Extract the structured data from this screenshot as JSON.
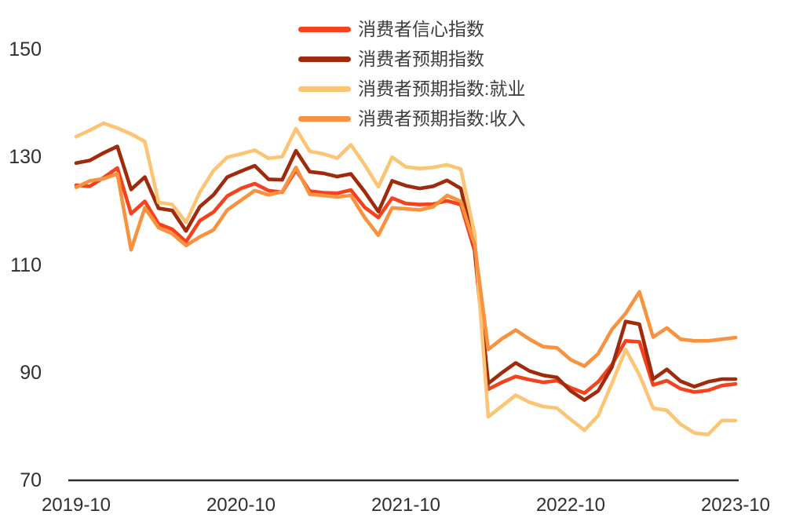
{
  "chart_data": {
    "type": "line",
    "title": "",
    "xlabel": "",
    "ylabel": "",
    "grid": false,
    "legend_position": "top-center",
    "ylim": [
      70,
      150
    ],
    "y_ticks": [
      150,
      130,
      110,
      90,
      70
    ],
    "x_ticks": [
      {
        "label": "2019-10",
        "month_index": 0
      },
      {
        "label": "2020-10",
        "month_index": 12
      },
      {
        "label": "2021-10",
        "month_index": 24
      },
      {
        "label": "2022-10",
        "month_index": 36
      },
      {
        "label": "2023-10",
        "month_index": 48
      }
    ],
    "x": [
      "2019-10",
      "2019-11",
      "2019-12",
      "2020-01",
      "2020-02",
      "2020-03",
      "2020-04",
      "2020-05",
      "2020-06",
      "2020-07",
      "2020-08",
      "2020-09",
      "2020-10",
      "2020-11",
      "2020-12",
      "2021-01",
      "2021-02",
      "2021-03",
      "2021-04",
      "2021-05",
      "2021-06",
      "2021-07",
      "2021-08",
      "2021-09",
      "2021-10",
      "2021-11",
      "2021-12",
      "2022-01",
      "2022-02",
      "2022-03",
      "2022-04",
      "2022-05",
      "2022-06",
      "2022-07",
      "2022-08",
      "2022-09",
      "2022-10",
      "2022-11",
      "2022-12",
      "2023-01",
      "2023-02",
      "2023-03",
      "2023-04",
      "2023-05",
      "2023-06",
      "2023-07",
      "2023-08",
      "2023-09",
      "2023-10"
    ],
    "series": [
      {
        "key": "cci",
        "name": "消费者信心指数",
        "color": "#F5421C",
        "values": [
          124.8,
          124.6,
          126.2,
          128.0,
          119.5,
          121.8,
          117.6,
          116.6,
          114.3,
          118.2,
          119.8,
          122.8,
          124.2,
          125.1,
          123.8,
          123.5,
          127.6,
          123.7,
          123.4,
          123.3,
          123.9,
          120.7,
          118.8,
          122.4,
          121.4,
          121.2,
          121.3,
          121.9,
          121.2,
          112.7,
          86.9,
          88.2,
          89.3,
          88.7,
          88.2,
          88.5,
          87.2,
          86.2,
          88.3,
          91.5,
          95.9,
          95.7,
          87.7,
          88.5,
          87.0,
          86.4,
          86.7,
          87.6,
          87.9
        ]
      },
      {
        "key": "expectation",
        "name": "消费者预期指数",
        "color": "#A02A0C",
        "values": [
          128.9,
          129.4,
          130.8,
          132.0,
          124.0,
          126.3,
          120.5,
          120.1,
          116.3,
          120.8,
          123.0,
          126.3,
          127.4,
          128.4,
          125.9,
          125.8,
          131.2,
          127.3,
          127.0,
          126.4,
          126.9,
          123.6,
          119.9,
          125.6,
          124.7,
          124.2,
          124.6,
          125.7,
          124.2,
          113.2,
          88.0,
          90.0,
          91.8,
          90.3,
          89.5,
          89.1,
          86.6,
          84.9,
          86.6,
          91.0,
          99.5,
          99.0,
          88.8,
          90.6,
          88.4,
          87.4,
          88.3,
          88.8,
          88.8
        ]
      },
      {
        "key": "expectation-employment",
        "name": "消费者预期指数:就业",
        "color": "#FCC573",
        "values": [
          133.8,
          135.0,
          136.3,
          135.4,
          134.3,
          132.9,
          121.6,
          121.2,
          117.9,
          123.5,
          127.5,
          130.0,
          130.6,
          131.3,
          129.8,
          130.1,
          135.3,
          131.1,
          130.6,
          129.8,
          132.3,
          128.6,
          124.5,
          130.0,
          128.2,
          127.9,
          128.1,
          128.6,
          127.8,
          115.8,
          81.8,
          83.8,
          85.8,
          84.5,
          83.7,
          83.4,
          81.3,
          79.3,
          82.0,
          88.0,
          94.3,
          89.6,
          83.4,
          83.0,
          80.4,
          78.8,
          78.5,
          81.1,
          81.1
        ]
      },
      {
        "key": "expectation-income",
        "name": "消费者预期指数:收入",
        "color": "#F8923F",
        "values": [
          124.4,
          125.6,
          126.0,
          126.9,
          112.8,
          120.6,
          116.9,
          115.8,
          113.6,
          115.2,
          116.5,
          120.2,
          122.0,
          123.8,
          123.0,
          123.6,
          128.1,
          123.1,
          122.9,
          122.6,
          122.9,
          118.8,
          115.5,
          120.6,
          120.4,
          120.2,
          120.8,
          122.9,
          121.8,
          113.8,
          94.3,
          96.3,
          97.9,
          96.2,
          94.8,
          94.6,
          92.4,
          91.2,
          93.5,
          98.0,
          101.0,
          105.0,
          96.6,
          98.3,
          96.2,
          95.9,
          95.9,
          96.2,
          96.5
        ]
      }
    ]
  }
}
